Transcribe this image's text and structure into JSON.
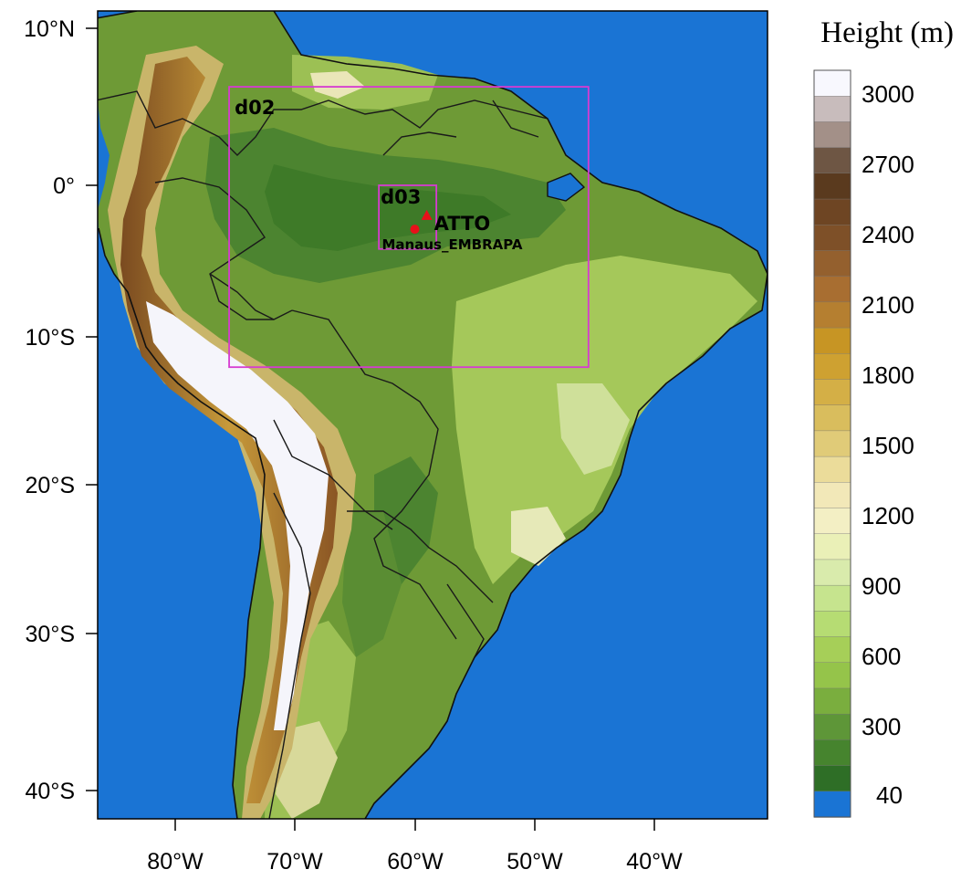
{
  "map": {
    "lat_labels": [
      "10°N",
      "0°",
      "10°S",
      "20°S",
      "30°S",
      "40°S"
    ],
    "lon_labels": [
      "80°W",
      "70°W",
      "60°W",
      "50°W",
      "40°W"
    ],
    "domains": {
      "d02": {
        "label": "d02",
        "lon_range": [
          -75.5,
          -45.5
        ],
        "lat_range": [
          -12,
          6.5
        ]
      },
      "d03": {
        "label": "d03",
        "lon_range": [
          -63,
          -58.2
        ],
        "lat_range": [
          -4.2,
          0
        ]
      }
    },
    "sites": [
      {
        "label": "ATTO",
        "lon": -59.0,
        "lat": -2.1,
        "symbol": "triangle",
        "color": "#e8101a"
      },
      {
        "label": "Manaus_EMBRAPA",
        "lon": -60.0,
        "lat": -2.9,
        "symbol": "dot",
        "color": "#e8101a"
      }
    ],
    "colors": {
      "ocean": "#1a74d4",
      "domain_box": "#d63bd1",
      "marker": "#e8101a"
    }
  },
  "colorbar": {
    "title": "Height  (m)",
    "labels": [
      "3000",
      "2700",
      "2400",
      "2100",
      "1800",
      "1500",
      "1200",
      "900",
      "600",
      "300",
      "40"
    ]
  }
}
